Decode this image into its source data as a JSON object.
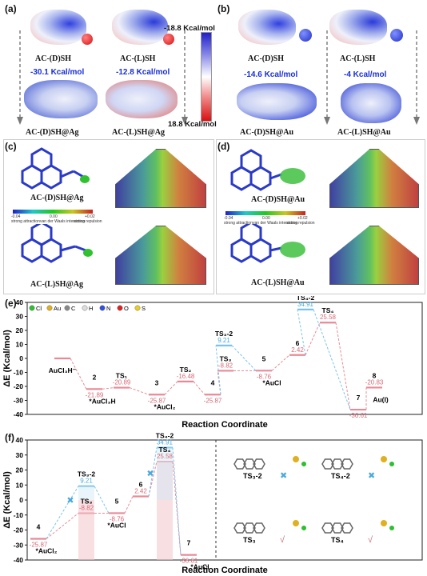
{
  "panels": {
    "a": "(a)",
    "b": "(b)",
    "c": "(c)",
    "d": "(d)",
    "e": "(e)",
    "f": "(f)"
  },
  "top": {
    "a_top_left": "AC-(D)SH",
    "a_top_right": "AC-(L)SH",
    "a_bottom_left": "AC-(D)SH@Ag",
    "a_bottom_right": "AC-(L)SH@Ag",
    "a_energy_left": "-30.1 Kcal/mol",
    "a_energy_right": "-12.8 Kcal/mol",
    "b_top_left": "AC-(D)SH",
    "b_top_right": "AC-(L)SH",
    "b_bottom_left": "AC-(D)SH@Au",
    "b_bottom_right": "AC-(L)SH@Au",
    "b_energy_left": "-14.6 Kcal/mol",
    "b_energy_right": "-4 Kcal/mol",
    "scale_max": "-18.8 Kcal/mol",
    "scale_min": "18.8 Kcal/mol"
  },
  "mid": {
    "c_top": "AC-(D)SH@Ag",
    "c_bottom": "AC-(L)SH@Ag",
    "d_top": "AC-(D)SH@Au",
    "d_bottom": "AC-(L)SH@Au",
    "colorbar_left": "-0.04",
    "colorbar_right": "+0.02",
    "colorbar_mid": "0.00",
    "legend_1": "strong attraction",
    "legend_2": "van der Waals interaction",
    "legend_3": "strong repulsion"
  },
  "chart_data": [
    {
      "type": "line",
      "title": "",
      "xlabel": "Reaction Coordinate",
      "ylabel": "ΔE (Kcal/mol)",
      "ylim": [
        -40,
        40
      ],
      "yticks": [
        40,
        30,
        20,
        10,
        0,
        -10,
        -20,
        -30,
        -40
      ],
      "series": [
        {
          "name": "path",
          "values": [
            0,
            -21.89,
            -20.89,
            -25.87,
            -16.48,
            -25.87,
            9.21,
            -8.82,
            -8.76,
            2.42,
            34.91,
            25.58,
            -36.61,
            -20.83
          ]
        }
      ],
      "states": [
        {
          "label": "AuCl₃H⁻",
          "value": 0,
          "value_text": ""
        },
        {
          "label": "2",
          "value": -21.89,
          "value_text": "-21.89"
        },
        {
          "label": "*AuCl₃H",
          "value": -21.89,
          "value_text": ""
        },
        {
          "label": "TS₁",
          "value": -20.89,
          "value_text": "-20.89"
        },
        {
          "label": "3",
          "value": -25.87,
          "value_text": "-25.87"
        },
        {
          "label": "*AuCl₂",
          "value": -25.87,
          "value_text": ""
        },
        {
          "label": "TS₂",
          "value": -16.48,
          "value_text": "-16.48"
        },
        {
          "label": "4",
          "value": -25.87,
          "value_text": "-25.87"
        },
        {
          "label": "TS₃-2",
          "value": 9.21,
          "value_text": "9.21"
        },
        {
          "label": "TS₃",
          "value": -8.82,
          "value_text": "-8.82"
        },
        {
          "label": "5",
          "value": -8.76,
          "value_text": "-8.76"
        },
        {
          "label": "*AuCl",
          "value": -8.76,
          "value_text": ""
        },
        {
          "label": "6",
          "value": 2.42,
          "value_text": "2.42"
        },
        {
          "label": "TS₄-2",
          "value": 34.91,
          "value_text": "34.91"
        },
        {
          "label": "TS₄",
          "value": 25.58,
          "value_text": "25.58"
        },
        {
          "label": "7",
          "value": -36.61,
          "value_text": "-36.61"
        },
        {
          "label": "8",
          "value": -20.83,
          "value_text": "-20.83"
        },
        {
          "label": "Au(I)",
          "value": -20.83,
          "value_text": ""
        }
      ],
      "element_legend": [
        "Cl",
        "Au",
        "C",
        "H",
        "N",
        "O",
        "S"
      ],
      "element_colors": [
        "#2fbf2f",
        "#e0b020",
        "#888888",
        "#dddddd",
        "#3050e0",
        "#e02020",
        "#e6d020"
      ]
    },
    {
      "type": "line",
      "title": "",
      "xlabel": "Reaction Coordinate",
      "ylabel": "ΔE (Kcal/mol)",
      "ylim": [
        -40,
        40
      ],
      "yticks": [
        40,
        30,
        20,
        10,
        0,
        -10,
        -20,
        -30,
        -40
      ],
      "states": [
        {
          "label": "4",
          "value": -25.87,
          "value_text": "-25.87"
        },
        {
          "label": "*AuCl₂",
          "value": -25.87,
          "value_text": ""
        },
        {
          "label": "TS₃-2",
          "value": 9.21,
          "value_text": "9.21"
        },
        {
          "label": "TS₃",
          "value": -8.82,
          "value_text": "-8.82"
        },
        {
          "label": "5",
          "value": -8.76,
          "value_text": "-8.76"
        },
        {
          "label": "*AuCl",
          "value": -8.76,
          "value_text": ""
        },
        {
          "label": "6",
          "value": 2.42,
          "value_text": "2.42"
        },
        {
          "label": "TS₄-2",
          "value": 34.91,
          "value_text": "34.91"
        },
        {
          "label": "TS₄",
          "value": 25.58,
          "value_text": "25.58"
        },
        {
          "label": "7",
          "value": -36.61,
          "value_text": "-36.61"
        },
        {
          "label": "*AuCl",
          "value": -36.61,
          "value_text": ""
        }
      ],
      "structures": [
        {
          "label": "TS₃-2",
          "mark": "✖"
        },
        {
          "label": "TS₄-2",
          "mark": "✖"
        },
        {
          "label": "TS₃",
          "mark": "√"
        },
        {
          "label": "TS₄",
          "mark": "√"
        }
      ]
    }
  ]
}
